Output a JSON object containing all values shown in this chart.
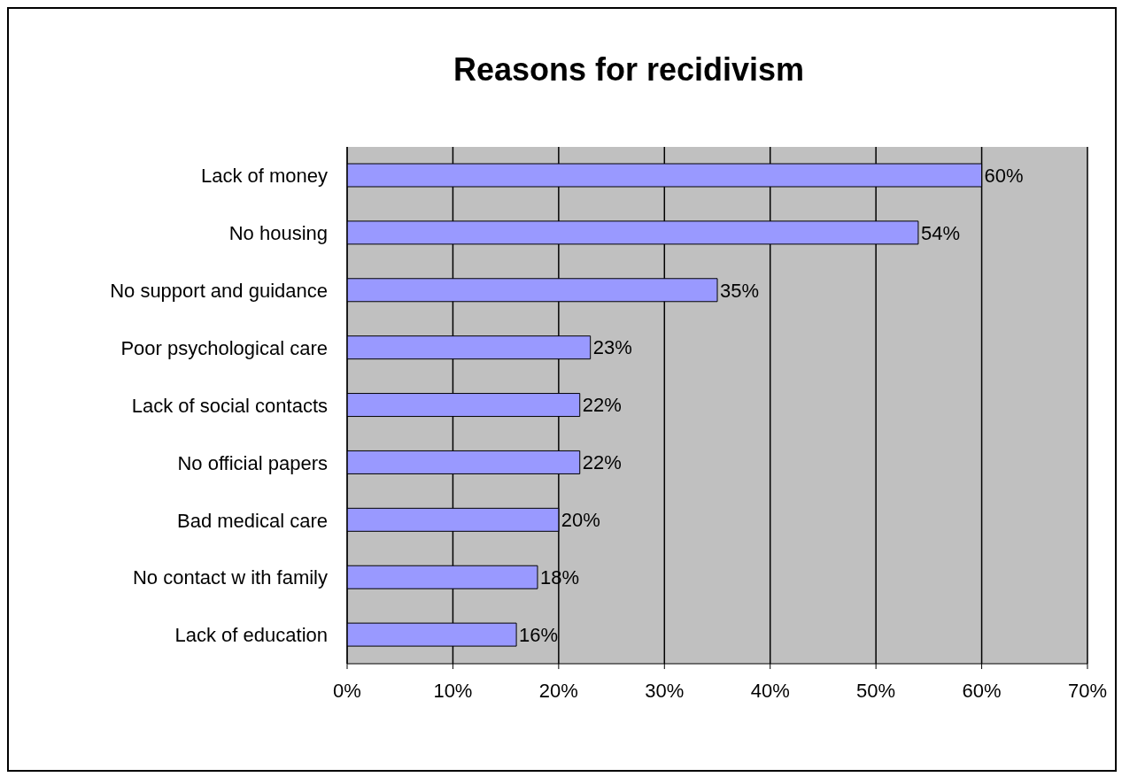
{
  "chart_data": {
    "type": "bar",
    "orientation": "horizontal",
    "title": "Reasons for recidivism",
    "categories": [
      "Lack of money",
      "No housing",
      "No support and guidance",
      "Poor psychological care ",
      "Lack of social contacts",
      "No official papers ",
      "Bad medical care",
      "No contact w ith family",
      "Lack of education"
    ],
    "values": [
      60,
      54,
      35,
      23,
      22,
      22,
      20,
      18,
      16
    ],
    "value_labels": [
      "60%",
      "54%",
      "35%",
      "23%",
      "22%",
      "22%",
      "20%",
      "18%",
      "16%"
    ],
    "color": "#9999ff",
    "xlim": [
      0,
      70
    ],
    "xticks": [
      {
        "value": 0,
        "label": "0%"
      },
      {
        "value": 10,
        "label": "10%"
      },
      {
        "value": 20,
        "label": "20%"
      },
      {
        "value": 30,
        "label": "30%"
      },
      {
        "value": 40,
        "label": "40%"
      },
      {
        "value": 50,
        "label": "50%"
      },
      {
        "value": 60,
        "label": "60%"
      },
      {
        "value": 70,
        "label": "70%"
      }
    ],
    "grid": "x"
  }
}
